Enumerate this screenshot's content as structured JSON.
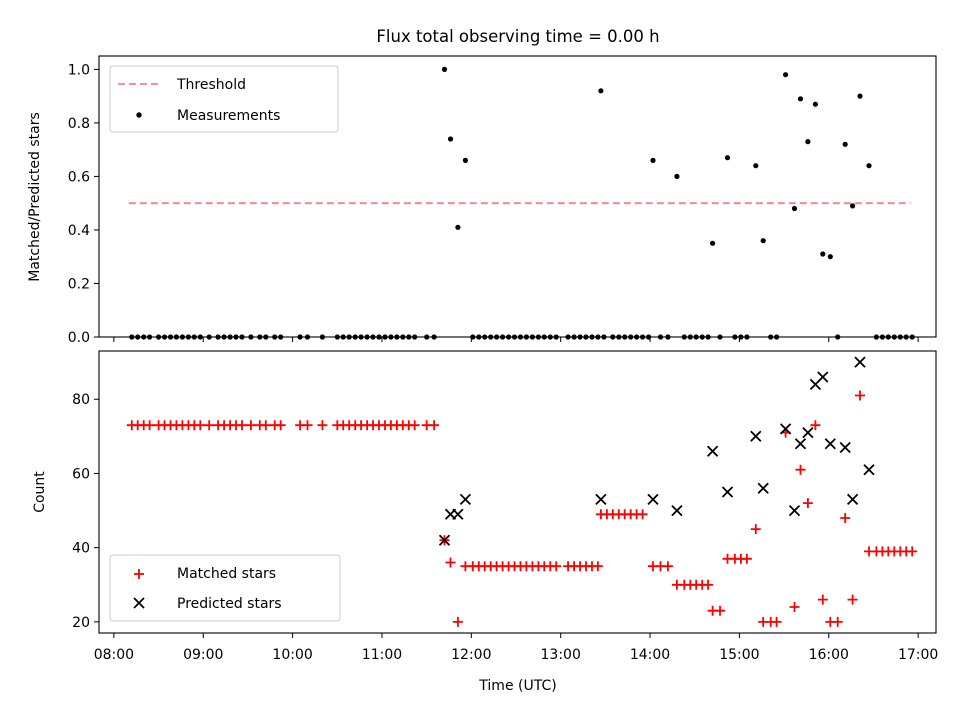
{
  "chart_data": [
    {
      "type": "scatter",
      "title": "Flux total observing time = 0.00 h",
      "xlabel": "",
      "ylabel": "Matched/Predicted stars",
      "ylim": [
        0,
        1.05
      ],
      "yticks": [
        0.0,
        0.2,
        0.4,
        0.6,
        0.8,
        1.0
      ],
      "ytick_labels": [
        "0.0",
        "0.2",
        "0.4",
        "0.6",
        "0.8",
        "1.0"
      ],
      "legend_position": "top-left",
      "legend": [
        "Threshold",
        "Measurements"
      ],
      "threshold": {
        "name": "Threshold",
        "y": 0.5,
        "x_start": "08:10",
        "x_end": "16:55",
        "color": "#ff7f7f"
      },
      "series": [
        {
          "name": "Measurements",
          "color": "#000000",
          "points": [
            [
              "08:12",
              0
            ],
            [
              "08:16",
              0
            ],
            [
              "08:20",
              0
            ],
            [
              "08:24",
              0
            ],
            [
              "08:30",
              0
            ],
            [
              "08:34",
              0
            ],
            [
              "08:38",
              0
            ],
            [
              "08:42",
              0
            ],
            [
              "08:46",
              0
            ],
            [
              "08:50",
              0
            ],
            [
              "08:54",
              0
            ],
            [
              "08:58",
              0
            ],
            [
              "09:04",
              0
            ],
            [
              "09:10",
              0
            ],
            [
              "09:14",
              0
            ],
            [
              "09:18",
              0
            ],
            [
              "09:22",
              0
            ],
            [
              "09:26",
              0
            ],
            [
              "09:32",
              0
            ],
            [
              "09:38",
              0
            ],
            [
              "09:42",
              0
            ],
            [
              "09:48",
              0
            ],
            [
              "09:52",
              0
            ],
            [
              "10:05",
              0
            ],
            [
              "10:10",
              0
            ],
            [
              "10:20",
              0
            ],
            [
              "10:30",
              0
            ],
            [
              "10:34",
              0
            ],
            [
              "10:38",
              0
            ],
            [
              "10:42",
              0
            ],
            [
              "10:46",
              0
            ],
            [
              "10:50",
              0
            ],
            [
              "10:54",
              0
            ],
            [
              "10:58",
              0
            ],
            [
              "11:02",
              0
            ],
            [
              "11:06",
              0
            ],
            [
              "11:10",
              0
            ],
            [
              "11:14",
              0
            ],
            [
              "11:18",
              0
            ],
            [
              "11:22",
              0
            ],
            [
              "11:30",
              0
            ],
            [
              "11:35",
              0
            ],
            [
              "11:42",
              1.0
            ],
            [
              "11:46",
              0.74
            ],
            [
              "11:51",
              0.41
            ],
            [
              "11:56",
              0.66
            ],
            [
              "12:01",
              0
            ],
            [
              "12:05",
              0
            ],
            [
              "12:09",
              0
            ],
            [
              "12:13",
              0
            ],
            [
              "12:17",
              0
            ],
            [
              "12:21",
              0
            ],
            [
              "12:25",
              0
            ],
            [
              "12:29",
              0
            ],
            [
              "12:33",
              0
            ],
            [
              "12:37",
              0
            ],
            [
              "12:41",
              0
            ],
            [
              "12:45",
              0
            ],
            [
              "12:49",
              0
            ],
            [
              "12:53",
              0
            ],
            [
              "12:57",
              0
            ],
            [
              "13:05",
              0
            ],
            [
              "13:09",
              0
            ],
            [
              "13:13",
              0
            ],
            [
              "13:17",
              0
            ],
            [
              "13:21",
              0
            ],
            [
              "13:25",
              0
            ],
            [
              "13:29",
              0
            ],
            [
              "13:27",
              0.92
            ],
            [
              "13:35",
              0
            ],
            [
              "13:39",
              0
            ],
            [
              "13:43",
              0
            ],
            [
              "13:47",
              0
            ],
            [
              "13:51",
              0
            ],
            [
              "13:55",
              0
            ],
            [
              "13:59",
              0
            ],
            [
              "14:02",
              0.66
            ],
            [
              "14:07",
              0
            ],
            [
              "14:12",
              0
            ],
            [
              "14:18",
              0.6
            ],
            [
              "14:23",
              0
            ],
            [
              "14:27",
              0
            ],
            [
              "14:31",
              0
            ],
            [
              "14:35",
              0
            ],
            [
              "14:39",
              0
            ],
            [
              "14:42",
              0.35
            ],
            [
              "14:47",
              0
            ],
            [
              "14:52",
              0.67
            ],
            [
              "14:57",
              0
            ],
            [
              "15:01",
              0
            ],
            [
              "15:05",
              0
            ],
            [
              "15:11",
              0.64
            ],
            [
              "15:16",
              0.36
            ],
            [
              "15:21",
              0
            ],
            [
              "15:25",
              0
            ],
            [
              "15:31",
              0.98
            ],
            [
              "15:37",
              0.48
            ],
            [
              "15:41",
              0.89
            ],
            [
              "15:46",
              0.73
            ],
            [
              "15:51",
              0.87
            ],
            [
              "15:56",
              0.31
            ],
            [
              "16:01",
              0.3
            ],
            [
              "16:06",
              0
            ],
            [
              "16:11",
              0.72
            ],
            [
              "16:16",
              0.49
            ],
            [
              "16:21",
              0.9
            ],
            [
              "16:27",
              0.64
            ],
            [
              "16:32",
              0
            ],
            [
              "16:36",
              0
            ],
            [
              "16:40",
              0
            ],
            [
              "16:44",
              0
            ],
            [
              "16:48",
              0
            ],
            [
              "16:52",
              0
            ],
            [
              "16:56",
              0
            ]
          ]
        }
      ]
    },
    {
      "type": "scatter",
      "title": "",
      "xlabel": "Time (UTC)",
      "ylabel": "Count",
      "xlim": [
        "07:50",
        "17:12"
      ],
      "ylim": [
        17,
        93
      ],
      "xticks": [
        "08:00",
        "09:00",
        "10:00",
        "11:00",
        "12:00",
        "13:00",
        "14:00",
        "15:00",
        "16:00",
        "17:00"
      ],
      "yticks": [
        20,
        40,
        60,
        80
      ],
      "ytick_labels": [
        "20",
        "40",
        "60",
        "80"
      ],
      "legend_position": "bottom-left",
      "legend": [
        "Matched stars",
        "Predicted stars"
      ],
      "series": [
        {
          "name": "Matched stars",
          "marker": "plus",
          "color": "#ff0000",
          "points": [
            [
              "08:12",
              73
            ],
            [
              "08:16",
              73
            ],
            [
              "08:20",
              73
            ],
            [
              "08:24",
              73
            ],
            [
              "08:30",
              73
            ],
            [
              "08:34",
              73
            ],
            [
              "08:38",
              73
            ],
            [
              "08:42",
              73
            ],
            [
              "08:46",
              73
            ],
            [
              "08:50",
              73
            ],
            [
              "08:54",
              73
            ],
            [
              "08:58",
              73
            ],
            [
              "09:04",
              73
            ],
            [
              "09:10",
              73
            ],
            [
              "09:14",
              73
            ],
            [
              "09:18",
              73
            ],
            [
              "09:22",
              73
            ],
            [
              "09:26",
              73
            ],
            [
              "09:32",
              73
            ],
            [
              "09:38",
              73
            ],
            [
              "09:42",
              73
            ],
            [
              "09:48",
              73
            ],
            [
              "09:52",
              73
            ],
            [
              "10:05",
              73
            ],
            [
              "10:10",
              73
            ],
            [
              "10:20",
              73
            ],
            [
              "10:30",
              73
            ],
            [
              "10:34",
              73
            ],
            [
              "10:38",
              73
            ],
            [
              "10:42",
              73
            ],
            [
              "10:46",
              73
            ],
            [
              "10:50",
              73
            ],
            [
              "10:54",
              73
            ],
            [
              "10:58",
              73
            ],
            [
              "11:02",
              73
            ],
            [
              "11:06",
              73
            ],
            [
              "11:10",
              73
            ],
            [
              "11:14",
              73
            ],
            [
              "11:18",
              73
            ],
            [
              "11:22",
              73
            ],
            [
              "11:30",
              73
            ],
            [
              "11:35",
              73
            ],
            [
              "11:42",
              42
            ],
            [
              "11:46",
              36
            ],
            [
              "11:51",
              20
            ],
            [
              "11:56",
              35
            ],
            [
              "12:01",
              35
            ],
            [
              "12:05",
              35
            ],
            [
              "12:09",
              35
            ],
            [
              "12:13",
              35
            ],
            [
              "12:17",
              35
            ],
            [
              "12:21",
              35
            ],
            [
              "12:25",
              35
            ],
            [
              "12:29",
              35
            ],
            [
              "12:33",
              35
            ],
            [
              "12:37",
              35
            ],
            [
              "12:41",
              35
            ],
            [
              "12:45",
              35
            ],
            [
              "12:49",
              35
            ],
            [
              "12:53",
              35
            ],
            [
              "12:57",
              35
            ],
            [
              "13:05",
              35
            ],
            [
              "13:09",
              35
            ],
            [
              "13:13",
              35
            ],
            [
              "13:17",
              35
            ],
            [
              "13:21",
              35
            ],
            [
              "13:25",
              35
            ],
            [
              "13:27",
              49
            ],
            [
              "13:31",
              49
            ],
            [
              "13:35",
              49
            ],
            [
              "13:39",
              49
            ],
            [
              "13:43",
              49
            ],
            [
              "13:47",
              49
            ],
            [
              "13:51",
              49
            ],
            [
              "13:55",
              49
            ],
            [
              "14:02",
              35
            ],
            [
              "14:07",
              35
            ],
            [
              "14:12",
              35
            ],
            [
              "14:18",
              30
            ],
            [
              "14:23",
              30
            ],
            [
              "14:27",
              30
            ],
            [
              "14:31",
              30
            ],
            [
              "14:35",
              30
            ],
            [
              "14:39",
              30
            ],
            [
              "14:42",
              23
            ],
            [
              "14:47",
              23
            ],
            [
              "14:52",
              37
            ],
            [
              "14:57",
              37
            ],
            [
              "15:01",
              37
            ],
            [
              "15:05",
              37
            ],
            [
              "15:11",
              45
            ],
            [
              "15:16",
              20
            ],
            [
              "15:21",
              20
            ],
            [
              "15:25",
              20
            ],
            [
              "15:31",
              71
            ],
            [
              "15:37",
              24
            ],
            [
              "15:41",
              61
            ],
            [
              "15:46",
              52
            ],
            [
              "15:51",
              73
            ],
            [
              "15:56",
              26
            ],
            [
              "16:01",
              20
            ],
            [
              "16:06",
              20
            ],
            [
              "16:11",
              48
            ],
            [
              "16:16",
              26
            ],
            [
              "16:21",
              81
            ],
            [
              "16:27",
              39
            ],
            [
              "16:32",
              39
            ],
            [
              "16:36",
              39
            ],
            [
              "16:40",
              39
            ],
            [
              "16:44",
              39
            ],
            [
              "16:48",
              39
            ],
            [
              "16:52",
              39
            ],
            [
              "16:56",
              39
            ]
          ]
        },
        {
          "name": "Predicted stars",
          "marker": "x",
          "color": "#000000",
          "points": [
            [
              "11:42",
              42
            ],
            [
              "11:46",
              49
            ],
            [
              "11:51",
              49
            ],
            [
              "11:56",
              53
            ],
            [
              "13:27",
              53
            ],
            [
              "14:02",
              53
            ],
            [
              "14:18",
              50
            ],
            [
              "14:42",
              66
            ],
            [
              "14:52",
              55
            ],
            [
              "15:11",
              70
            ],
            [
              "15:16",
              56
            ],
            [
              "15:31",
              72
            ],
            [
              "15:37",
              50
            ],
            [
              "15:41",
              68
            ],
            [
              "15:46",
              71
            ],
            [
              "15:51",
              84
            ],
            [
              "15:56",
              86
            ],
            [
              "16:01",
              68
            ],
            [
              "16:11",
              67
            ],
            [
              "16:16",
              53
            ],
            [
              "16:21",
              90
            ],
            [
              "16:27",
              61
            ]
          ]
        }
      ]
    }
  ]
}
